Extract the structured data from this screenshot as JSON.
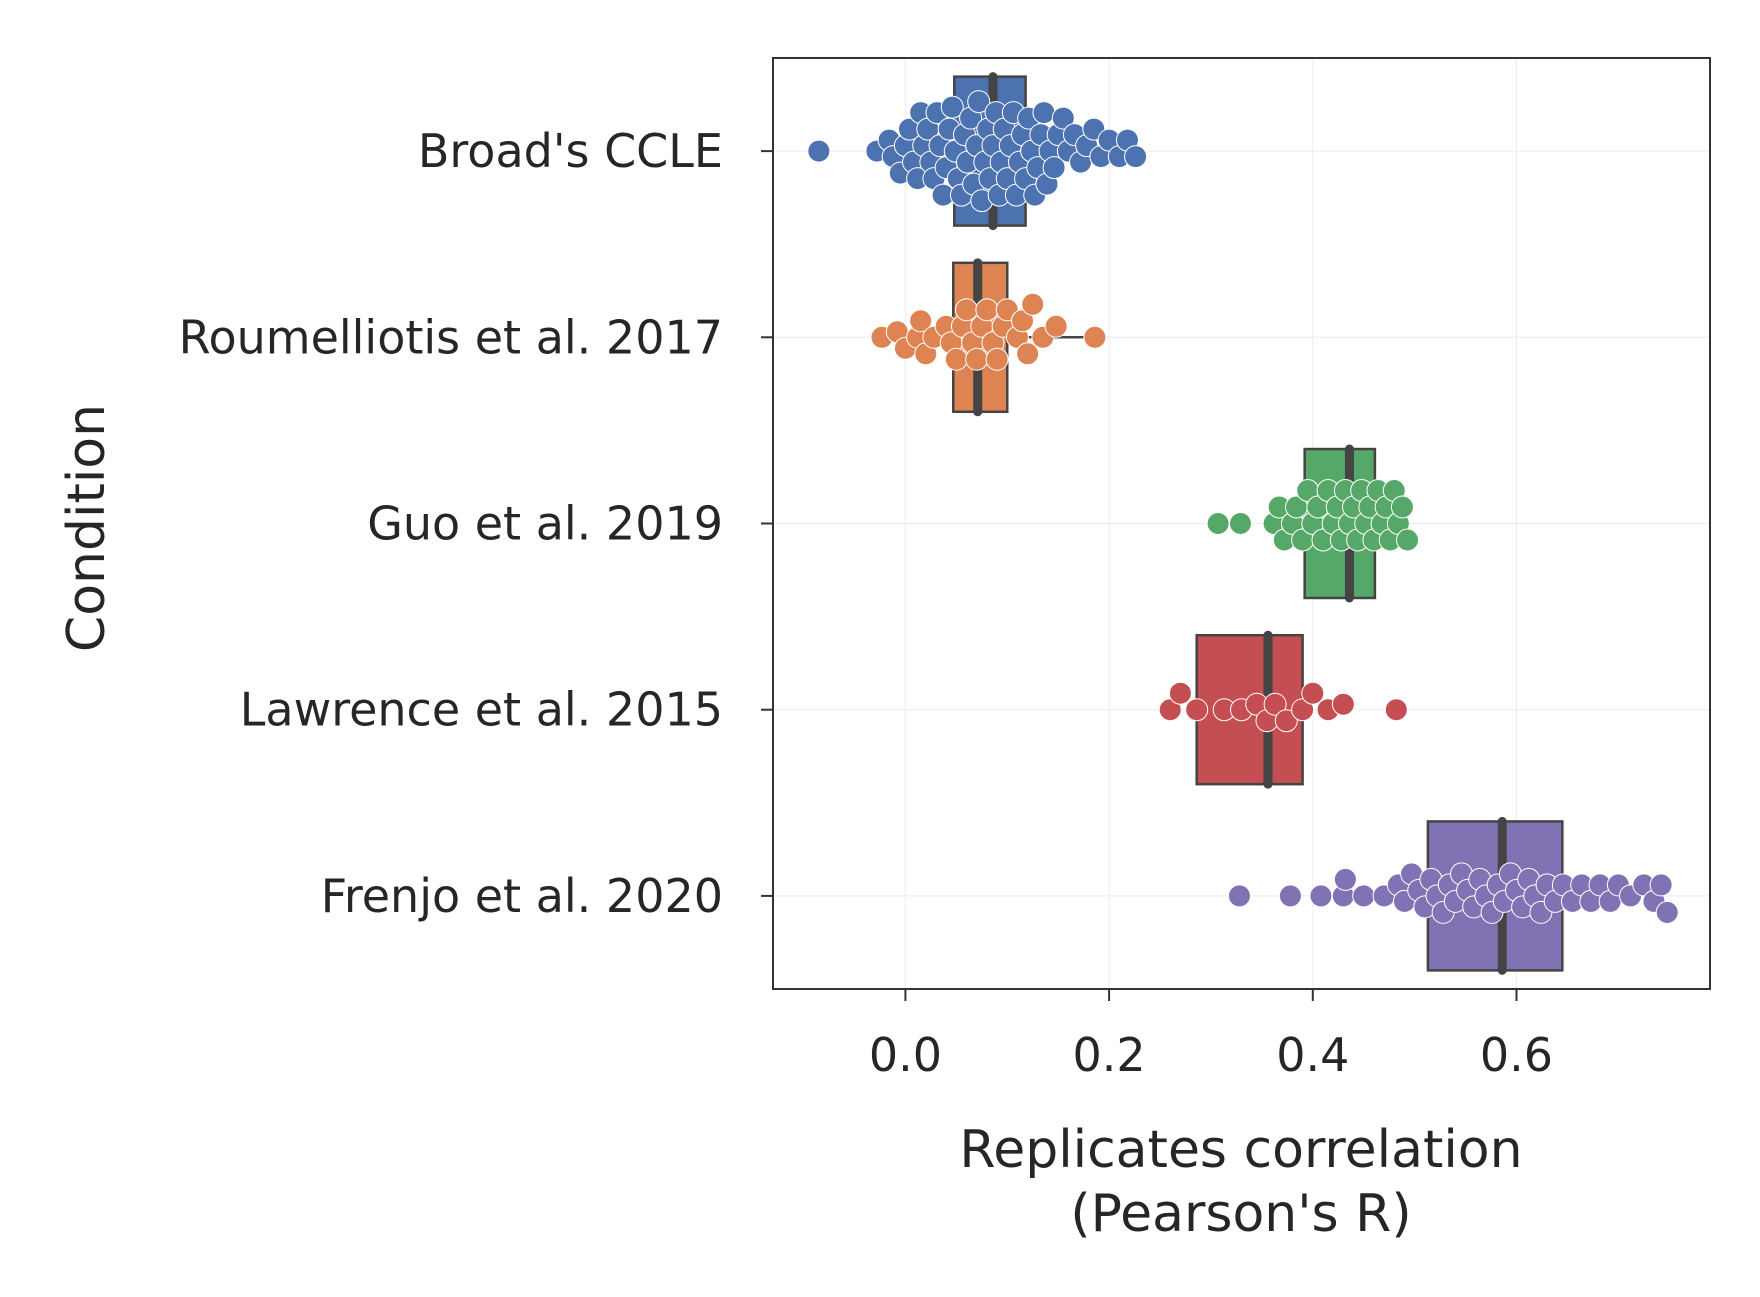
{
  "chart_data": {
    "type": "box",
    "orientation": "horizontal",
    "xlabel": [
      "Replicates correlation",
      "(Pearson's R)"
    ],
    "ylabel": "Condition",
    "xlim": [
      -0.13,
      0.79
    ],
    "xticks": [
      0.0,
      0.2,
      0.4,
      0.6
    ],
    "xtick_labels": [
      "0.0",
      "0.2",
      "0.4",
      "0.6"
    ],
    "grid": true,
    "series": [
      {
        "name": "Broad's CCLE",
        "color": "#4C72B0",
        "box": {
          "q1": 0.048,
          "median": 0.086,
          "q3": 0.118,
          "whisker_low": 0.048,
          "whisker_high": 0.118
        },
        "points": [
          -0.085,
          -0.028,
          -0.016,
          -0.012,
          -0.005,
          0.0,
          0.004,
          0.008,
          0.012,
          0.015,
          0.018,
          0.022,
          0.025,
          0.028,
          0.031,
          0.034,
          0.037,
          0.04,
          0.043,
          0.046,
          0.049,
          0.052,
          0.055,
          0.058,
          0.061,
          0.064,
          0.067,
          0.07,
          0.072,
          0.075,
          0.078,
          0.081,
          0.083,
          0.086,
          0.089,
          0.092,
          0.094,
          0.097,
          0.1,
          0.103,
          0.106,
          0.109,
          0.112,
          0.115,
          0.118,
          0.121,
          0.124,
          0.127,
          0.13,
          0.133,
          0.136,
          0.139,
          0.142,
          0.146,
          0.15,
          0.155,
          0.16,
          0.166,
          0.172,
          0.178,
          0.185,
          0.192,
          0.2,
          0.21,
          0.218,
          0.226
        ]
      },
      {
        "name": "Roumelliotis et al. 2017",
        "color": "#DD8452",
        "box": {
          "q1": 0.047,
          "median": 0.071,
          "q3": 0.1,
          "whisker_low": 0.047,
          "whisker_high": 0.186
        },
        "points": [
          -0.023,
          -0.008,
          0.0,
          0.012,
          0.015,
          0.02,
          0.028,
          0.04,
          0.045,
          0.05,
          0.056,
          0.06,
          0.066,
          0.07,
          0.075,
          0.08,
          0.086,
          0.09,
          0.096,
          0.1,
          0.11,
          0.115,
          0.12,
          0.125,
          0.135,
          0.148,
          0.186
        ]
      },
      {
        "name": "Guo et al. 2019",
        "color": "#55A868",
        "box": {
          "q1": 0.392,
          "median": 0.436,
          "q3": 0.461,
          "whisker_low": 0.392,
          "whisker_high": 0.461
        },
        "points": [
          0.307,
          0.329,
          0.362,
          0.367,
          0.372,
          0.38,
          0.384,
          0.39,
          0.395,
          0.4,
          0.405,
          0.41,
          0.415,
          0.42,
          0.424,
          0.428,
          0.432,
          0.436,
          0.44,
          0.444,
          0.448,
          0.452,
          0.456,
          0.46,
          0.464,
          0.468,
          0.472,
          0.476,
          0.48,
          0.484,
          0.488,
          0.493
        ]
      },
      {
        "name": "Lawrence et al. 2015",
        "color": "#C44E52",
        "box": {
          "q1": 0.286,
          "median": 0.356,
          "q3": 0.39,
          "whisker_low": 0.286,
          "whisker_high": 0.39
        },
        "points": [
          0.26,
          0.27,
          0.286,
          0.313,
          0.33,
          0.345,
          0.355,
          0.363,
          0.374,
          0.39,
          0.4,
          0.415,
          0.43,
          0.482
        ]
      },
      {
        "name": "Frenjo et al. 2020",
        "color": "#8172B3",
        "box": {
          "q1": 0.513,
          "median": 0.586,
          "q3": 0.645,
          "whisker_low": 0.513,
          "whisker_high": 0.645
        },
        "points": [
          0.328,
          0.378,
          0.408,
          0.43,
          0.432,
          0.45,
          0.47,
          0.484,
          0.49,
          0.497,
          0.504,
          0.51,
          0.516,
          0.522,
          0.528,
          0.534,
          0.54,
          0.546,
          0.552,
          0.558,
          0.564,
          0.57,
          0.576,
          0.582,
          0.588,
          0.594,
          0.6,
          0.606,
          0.612,
          0.618,
          0.624,
          0.63,
          0.638,
          0.646,
          0.655,
          0.664,
          0.673,
          0.682,
          0.692,
          0.7,
          0.712,
          0.725,
          0.735,
          0.742,
          0.748
        ]
      }
    ]
  }
}
